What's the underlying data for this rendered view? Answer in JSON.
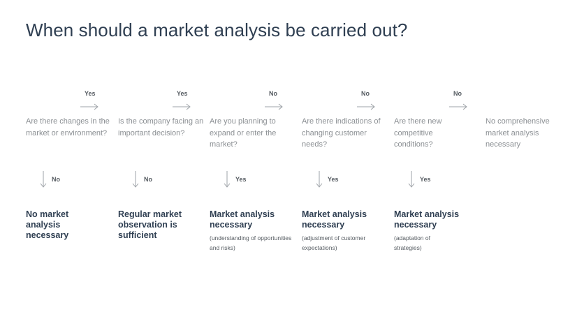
{
  "title": "When should a market analysis be carried out?",
  "flow_labels": [
    "Yes",
    "Yes",
    "No",
    "No",
    "No"
  ],
  "questions": [
    "Are there changes in the market or environment?",
    "Is the company facing an important decision?",
    "Are you planning to expand or enter the market?",
    "Are there indications of changing customer needs?",
    "Are there new competitive conditions?",
    "No comprehensive market analysis necessary"
  ],
  "branch_labels": [
    "No",
    "No",
    "Yes",
    "Yes",
    "Yes"
  ],
  "outcomes": [
    {
      "title": "No market analysis necessary",
      "note": ""
    },
    {
      "title": "Regular market observation is sufficient",
      "note": ""
    },
    {
      "title": "Market analysis necessary",
      "note": "(understanding of opportunities and risks)"
    },
    {
      "title": "Market analysis necessary",
      "note": "(adjustment of customer expectations)"
    },
    {
      "title": "Market analysis necessary",
      "note": "(adaptation of strategies)"
    }
  ],
  "colors": {
    "title": "#2f3f52",
    "question": "#8c9094",
    "label": "#555b61",
    "arrow": "#9ea3a8"
  }
}
